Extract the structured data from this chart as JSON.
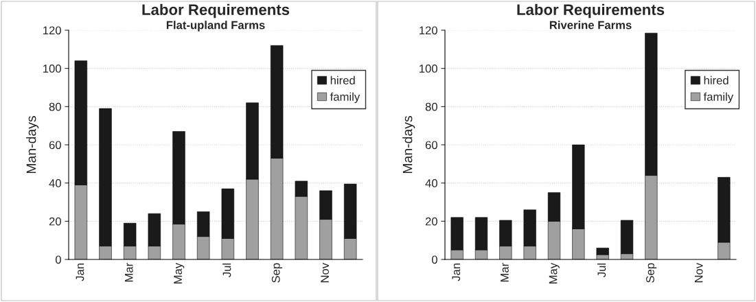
{
  "chart_data": [
    {
      "type": "bar",
      "title": "Labor Requirements",
      "subtitle": "Flat-upland Farms",
      "ylabel": "Man-days",
      "stacked": true,
      "categories": [
        "Jan",
        null,
        "Mar",
        null,
        "May",
        null,
        "Jul",
        null,
        "Sep",
        null,
        "Nov",
        null
      ],
      "series": [
        {
          "name": "family",
          "color": "#a0a0a0",
          "values": [
            39,
            7,
            7,
            7,
            18.5,
            12,
            11,
            42,
            53,
            33,
            21,
            11
          ]
        },
        {
          "name": "hired",
          "color": "#1a1a1a",
          "values": [
            65,
            72,
            12,
            17,
            48.5,
            13,
            26,
            40,
            59,
            8,
            15,
            28.5
          ]
        }
      ],
      "ylim": [
        0,
        120
      ],
      "yticks": [
        0,
        20,
        40,
        60,
        80,
        100,
        120
      ],
      "grid": "y",
      "legend": "top right"
    },
    {
      "type": "bar",
      "title": "Labor Requirements",
      "subtitle": "Riverine Farms",
      "ylabel": "Man-days",
      "stacked": true,
      "categories": [
        "Jan",
        null,
        "Mar",
        null,
        "May",
        null,
        "Jul",
        null,
        "Sep",
        null,
        "Nov",
        null
      ],
      "series": [
        {
          "name": "family",
          "color": "#a0a0a0",
          "values": [
            5,
            5,
            7,
            7,
            20,
            16,
            2.5,
            3,
            44,
            null,
            null,
            9
          ]
        },
        {
          "name": "hired",
          "color": "#1a1a1a",
          "values": [
            17,
            17,
            13.5,
            19,
            15,
            44,
            3.5,
            17.5,
            74.5,
            null,
            null,
            34
          ]
        }
      ],
      "ylim": [
        0,
        120
      ],
      "yticks": [
        0,
        20,
        40,
        60,
        80,
        100,
        120
      ],
      "grid": "y",
      "legend": "top right"
    }
  ]
}
